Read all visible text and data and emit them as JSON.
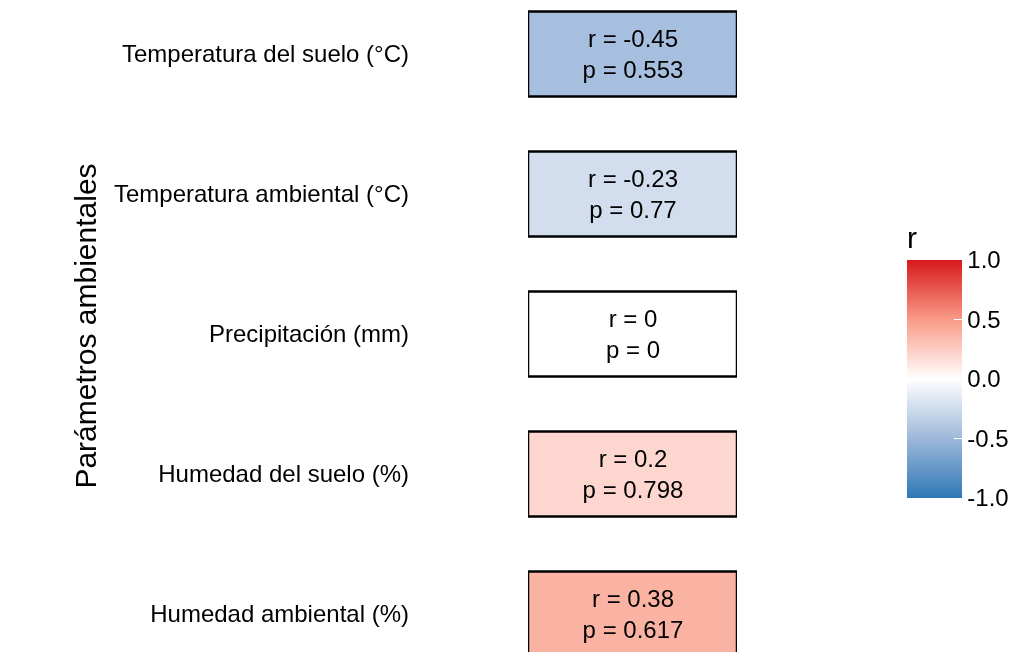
{
  "chart_data": {
    "type": "heatmap",
    "ylabel": "Parámetros ambientales",
    "clabel": "r",
    "categories": [
      null
    ],
    "y_categories": [
      "Temperatura del suelo (°C)",
      "Temperatura ambiental (°C)",
      "Precipitación (mm)",
      "Humedad del suelo (%)",
      "Humedad ambiental (%)"
    ],
    "cells": [
      [
        -0.45
      ],
      [
        -0.23
      ],
      [
        0
      ],
      [
        0.2
      ],
      [
        0.38
      ]
    ],
    "cell_labels": [
      [
        "r = -0.45\np = 0.553"
      ],
      [
        "r = -0.23\np = 0.77"
      ],
      [
        "r = 0\np = 0"
      ],
      [
        "r = 0.2\np = 0.798"
      ],
      [
        "r = 0.38\np = 0.617"
      ]
    ],
    "clim": [
      -1,
      1
    ],
    "cticks": [
      {
        "value": 1,
        "label": "1.0"
      },
      0.5,
      {
        "value": 0,
        "label": "0.0"
      },
      -0.5,
      {
        "value": -1,
        "label": "-1.0"
      }
    ],
    "tick_labels": "y"
  }
}
